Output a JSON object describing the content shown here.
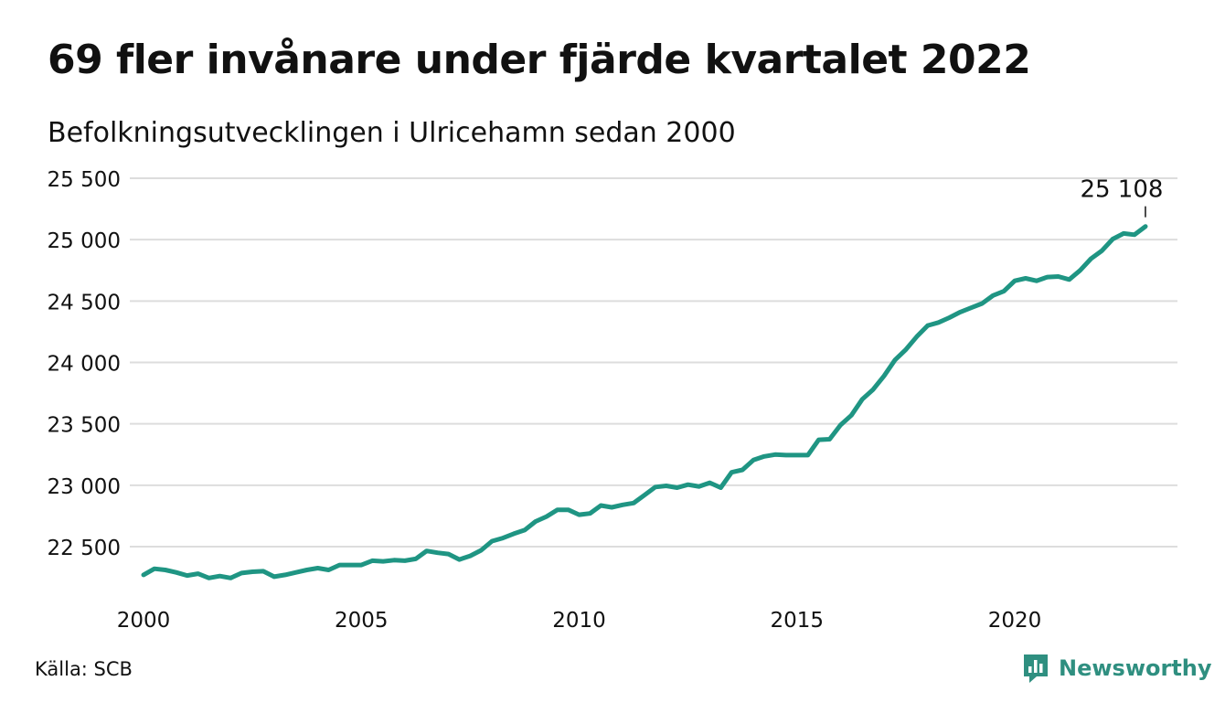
{
  "title": "69 fler invånare under fjärde kvartalet 2022",
  "subtitle": "Befolkningsutvecklingen i Ulricehamn sedan 2000",
  "source": "Källa: SCB",
  "brand": {
    "name": "Newsworthy",
    "icon": "bar-chart-speech-bubble-icon"
  },
  "colors": {
    "line": "#1f9583",
    "grid": "#dddddd",
    "text": "#111111",
    "brand": "#2f8f80"
  },
  "chart_data": {
    "type": "line",
    "ylim": [
      22100,
      25600
    ],
    "xlim": [
      2000.0,
      2023.75
    ],
    "yticks": [
      22500,
      23000,
      23500,
      24000,
      24500,
      25000,
      25500
    ],
    "ytick_labels": [
      "22 500",
      "23 000",
      "23 500",
      "24 000",
      "24 500",
      "25 000",
      "25 500"
    ],
    "xticks": [
      2000,
      2005,
      2010,
      2015,
      2020
    ],
    "xtick_labels": [
      "2000",
      "2005",
      "2010",
      "2015",
      "2020"
    ],
    "grid": true,
    "end_label": "25 108",
    "series": [
      {
        "x": [
          2000.0,
          2000.25,
          2000.5,
          2000.75,
          2001.0,
          2001.25,
          2001.5,
          2001.75,
          2002.0,
          2002.25,
          2002.5,
          2002.75,
          2003.0,
          2003.25,
          2003.5,
          2003.75,
          2004.0,
          2004.25,
          2004.5,
          2004.75,
          2005.0,
          2005.25,
          2005.5,
          2005.75,
          2006.0,
          2006.25,
          2006.5,
          2006.75,
          2007.0,
          2007.25,
          2007.5,
          2007.75,
          2008.0,
          2008.25,
          2008.5,
          2008.75,
          2009.0,
          2009.25,
          2009.5,
          2009.75,
          2010.0,
          2010.25,
          2010.5,
          2010.75,
          2011.0,
          2011.25,
          2011.5,
          2011.75,
          2012.0,
          2012.25,
          2012.5,
          2012.75,
          2013.0,
          2013.25,
          2013.5,
          2013.75,
          2014.0,
          2014.25,
          2014.5,
          2014.75,
          2015.0,
          2015.25,
          2015.5,
          2015.75,
          2016.0,
          2016.25,
          2016.5,
          2016.75,
          2017.0,
          2017.25,
          2017.5,
          2017.75,
          2018.0,
          2018.25,
          2018.5,
          2018.75,
          2019.0,
          2019.25,
          2019.5,
          2019.75,
          2020.0,
          2020.25,
          2020.5,
          2020.75,
          2021.0,
          2021.25,
          2021.5,
          2021.75,
          2022.0,
          2022.25,
          2022.5,
          2022.75,
          2023.0
        ],
        "values": [
          22270,
          22320,
          22310,
          22290,
          22265,
          22280,
          22245,
          22260,
          22245,
          22285,
          22295,
          22300,
          22255,
          22270,
          22290,
          22310,
          22325,
          22310,
          22350,
          22350,
          22350,
          22385,
          22380,
          22390,
          22385,
          22400,
          22465,
          22450,
          22440,
          22395,
          22425,
          22470,
          22545,
          22570,
          22605,
          22635,
          22705,
          22745,
          22800,
          22800,
          22760,
          22770,
          22835,
          22820,
          22840,
          22855,
          22920,
          22985,
          22995,
          22980,
          23005,
          22990,
          23020,
          22980,
          23105,
          23125,
          23205,
          23235,
          23250,
          23245,
          23245,
          23245,
          23370,
          23375,
          23490,
          23570,
          23700,
          23780,
          23890,
          24020,
          24105,
          24210,
          24300,
          24325,
          24365,
          24410,
          24445,
          24480,
          24545,
          24580,
          24665,
          24685,
          24665,
          24695,
          24700,
          24675,
          24750,
          24845,
          24910,
          25005,
          25050,
          25040,
          25108
        ]
      }
    ]
  }
}
